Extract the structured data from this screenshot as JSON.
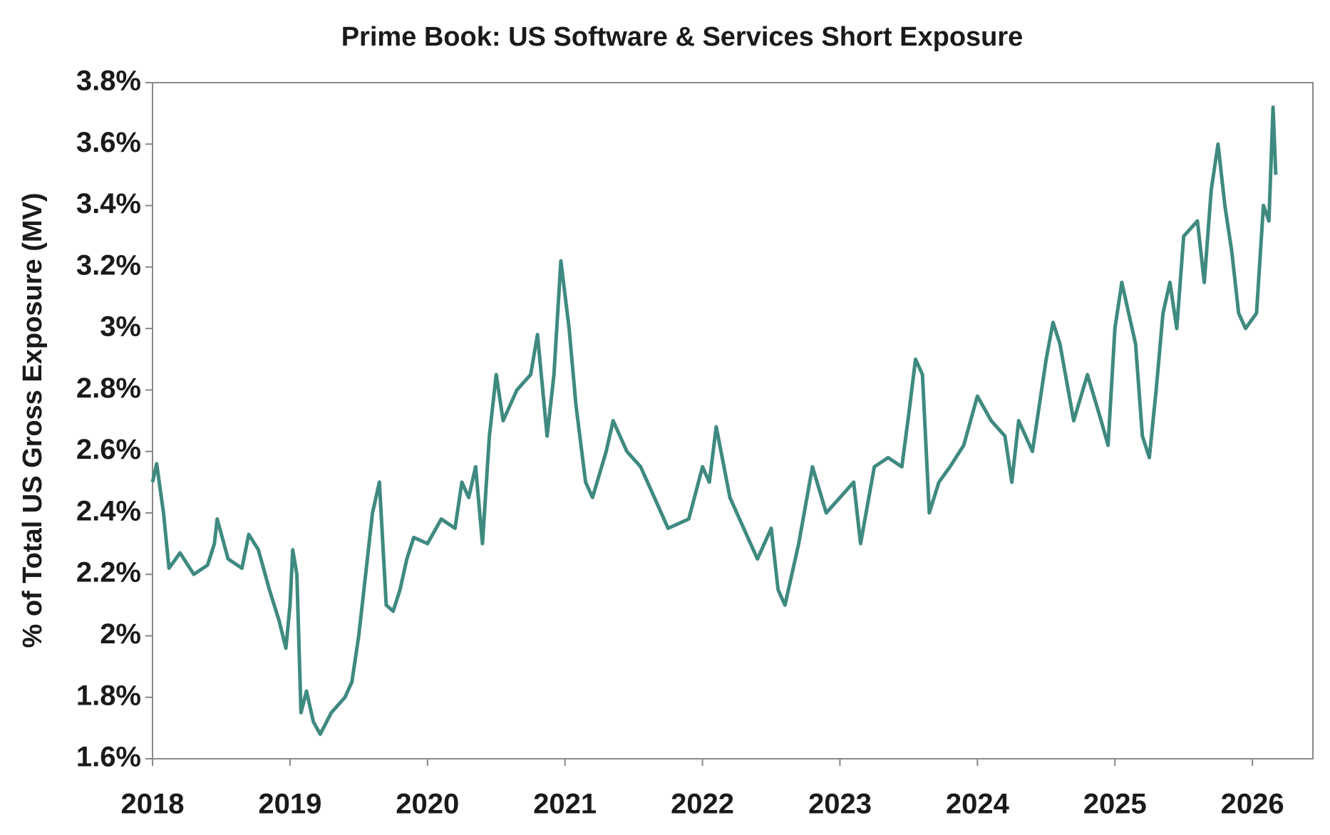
{
  "chart_data": {
    "type": "line",
    "title": "Prime Book: US Software & Services Short Exposure",
    "y_label": "% of Total US Gross Exposure (MV)",
    "xlim": [
      2018,
      2026.44
    ],
    "xticks": [
      2018,
      2019,
      2020,
      2021,
      2022,
      2023,
      2024,
      2025,
      2026
    ],
    "ylim": [
      1.6,
      3.8
    ],
    "yticks": [
      {
        "value": 1.6,
        "label": "1.6%"
      },
      {
        "value": 1.8,
        "label": "1.8%"
      },
      {
        "value": 2.0,
        "label": "2%"
      },
      {
        "value": 2.2,
        "label": "2.2%"
      },
      {
        "value": 2.4,
        "label": "2.4%"
      },
      {
        "value": 2.6,
        "label": "2.6%"
      },
      {
        "value": 2.8,
        "label": "2.8%"
      },
      {
        "value": 3.0,
        "label": "3%"
      },
      {
        "value": 3.2,
        "label": "3.2%"
      },
      {
        "value": 3.4,
        "label": "3.4%"
      },
      {
        "value": 3.6,
        "label": "3.6%"
      },
      {
        "value": 3.8,
        "label": "3.8%"
      }
    ],
    "grid": false,
    "series": [
      {
        "color": "#3f8a80",
        "x": [
          2018.0,
          2018.03,
          2018.08,
          2018.12,
          2018.2,
          2018.3,
          2018.4,
          2018.45,
          2018.47,
          2018.55,
          2018.65,
          2018.7,
          2018.77,
          2018.85,
          2018.92,
          2018.97,
          2019.0,
          2019.02,
          2019.05,
          2019.08,
          2019.12,
          2019.17,
          2019.22,
          2019.3,
          2019.4,
          2019.45,
          2019.5,
          2019.55,
          2019.6,
          2019.65,
          2019.7,
          2019.75,
          2019.8,
          2019.85,
          2019.9,
          2020.0,
          2020.1,
          2020.2,
          2020.25,
          2020.3,
          2020.35,
          2020.4,
          2020.45,
          2020.5,
          2020.55,
          2020.65,
          2020.75,
          2020.8,
          2020.87,
          2020.92,
          2020.97,
          2021.03,
          2021.08,
          2021.15,
          2021.2,
          2021.3,
          2021.35,
          2021.45,
          2021.55,
          2021.65,
          2021.75,
          2021.9,
          2022.0,
          2022.05,
          2022.1,
          2022.2,
          2022.3,
          2022.4,
          2022.5,
          2022.55,
          2022.6,
          2022.7,
          2022.8,
          2022.9,
          2023.0,
          2023.1,
          2023.15,
          2023.25,
          2023.35,
          2023.45,
          2023.5,
          2023.55,
          2023.6,
          2023.65,
          2023.72,
          2023.8,
          2023.9,
          2024.0,
          2024.1,
          2024.2,
          2024.25,
          2024.3,
          2024.4,
          2024.5,
          2024.55,
          2024.6,
          2024.7,
          2024.8,
          2024.9,
          2024.95,
          2025.0,
          2025.05,
          2025.1,
          2025.15,
          2025.2,
          2025.25,
          2025.3,
          2025.35,
          2025.4,
          2025.45,
          2025.5,
          2025.6,
          2025.65,
          2025.7,
          2025.75,
          2025.8,
          2025.85,
          2025.9,
          2025.95,
          2026.03,
          2026.08,
          2026.12,
          2026.15,
          2026.17
        ],
        "values": [
          2.5,
          2.56,
          2.4,
          2.22,
          2.27,
          2.2,
          2.23,
          2.3,
          2.38,
          2.25,
          2.22,
          2.33,
          2.28,
          2.15,
          2.05,
          1.96,
          2.1,
          2.28,
          2.2,
          1.75,
          1.82,
          1.72,
          1.68,
          1.75,
          1.8,
          1.85,
          2.0,
          2.2,
          2.4,
          2.5,
          2.1,
          2.08,
          2.15,
          2.25,
          2.32,
          2.3,
          2.38,
          2.35,
          2.5,
          2.45,
          2.55,
          2.3,
          2.65,
          2.85,
          2.7,
          2.8,
          2.85,
          2.98,
          2.65,
          2.85,
          3.22,
          3.0,
          2.75,
          2.5,
          2.45,
          2.6,
          2.7,
          2.6,
          2.55,
          2.45,
          2.35,
          2.38,
          2.55,
          2.5,
          2.68,
          2.45,
          2.35,
          2.25,
          2.35,
          2.15,
          2.1,
          2.3,
          2.55,
          2.4,
          2.45,
          2.5,
          2.3,
          2.55,
          2.58,
          2.55,
          2.72,
          2.9,
          2.85,
          2.4,
          2.5,
          2.55,
          2.62,
          2.78,
          2.7,
          2.65,
          2.5,
          2.7,
          2.6,
          2.9,
          3.02,
          2.95,
          2.7,
          2.85,
          2.7,
          2.62,
          3.0,
          3.15,
          3.05,
          2.95,
          2.65,
          2.58,
          2.8,
          3.05,
          3.15,
          3.0,
          3.3,
          3.35,
          3.15,
          3.45,
          3.6,
          3.4,
          3.25,
          3.05,
          3.0,
          3.05,
          3.4,
          3.35,
          3.72,
          3.5
        ]
      }
    ]
  }
}
